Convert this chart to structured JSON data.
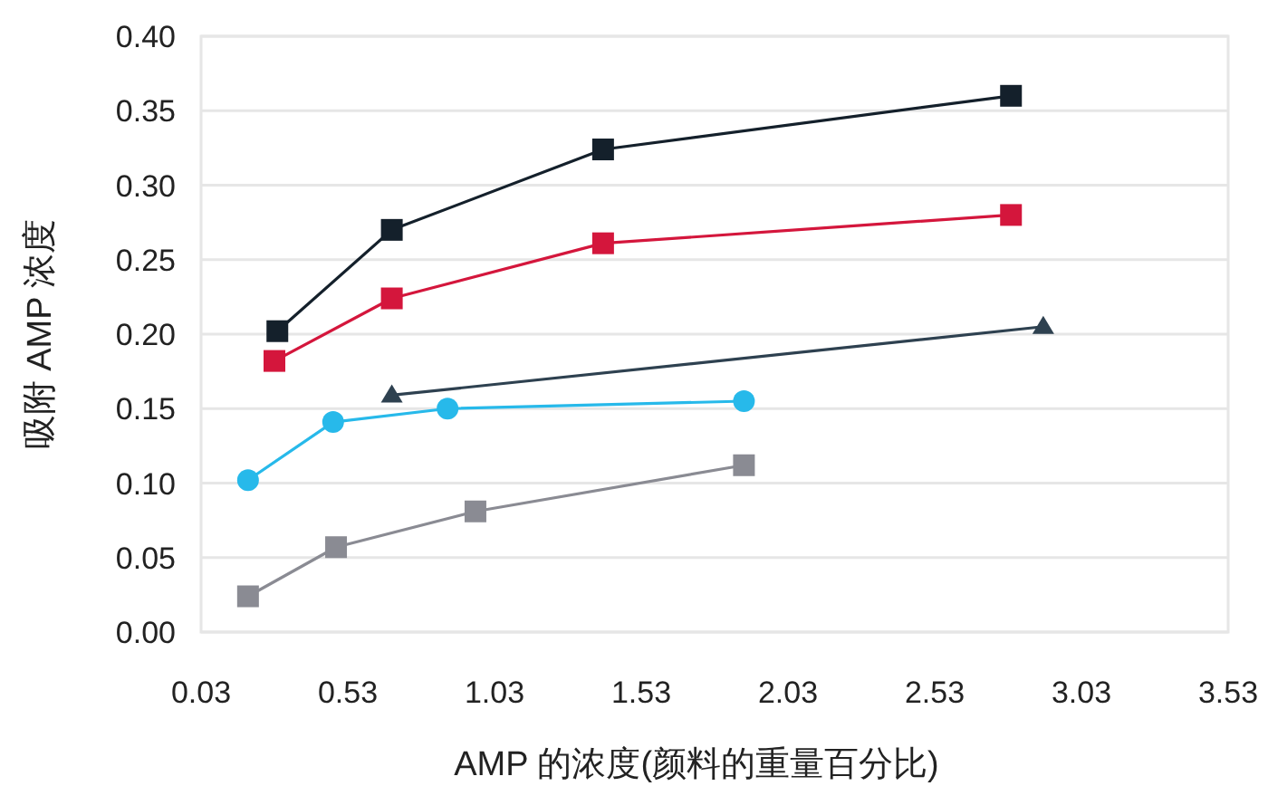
{
  "chart_data": {
    "type": "line",
    "xlabel": "AMP 的浓度(颜料的重量百分比)",
    "ylabel": "吸附 AMP 浓度",
    "xlim": [
      0.03,
      3.53
    ],
    "xticks": [
      0.03,
      0.53,
      1.03,
      1.53,
      2.03,
      2.53,
      3.03,
      3.53
    ],
    "ylim": [
      0,
      0.4
    ],
    "yticks": [
      {
        "value": 0,
        "label": "0.00"
      },
      0.05,
      {
        "value": 0.1,
        "label": "0.10"
      },
      0.15,
      {
        "value": 0.2,
        "label": "0.20"
      },
      0.25,
      {
        "value": 0.3,
        "label": "0.30"
      },
      0.35,
      {
        "value": 0.4,
        "label": "0.40"
      }
    ],
    "grid": "y",
    "series": [
      {
        "color": "#14202b",
        "marker": "square",
        "x": [
          0.29,
          0.68,
          1.4,
          2.79
        ],
        "values": [
          0.202,
          0.27,
          0.324,
          0.36
        ]
      },
      {
        "color": "#d4163c",
        "marker": "square",
        "x": [
          0.28,
          0.68,
          1.4,
          2.79
        ],
        "values": [
          0.182,
          0.224,
          0.261,
          0.28
        ]
      },
      {
        "color": "#2e4150",
        "marker": "triangle",
        "x": [
          0.68,
          2.9
        ],
        "values": [
          0.159,
          0.205
        ]
      },
      {
        "color": "#27b9ea",
        "marker": "circle",
        "x": [
          0.19,
          0.48,
          0.87,
          1.88
        ],
        "values": [
          0.102,
          0.141,
          0.15,
          0.155
        ]
      },
      {
        "color": "#8a8b93",
        "marker": "square",
        "x": [
          0.19,
          0.49,
          0.965,
          1.88
        ],
        "values": [
          0.024,
          0.057,
          0.081,
          0.112
        ]
      }
    ]
  }
}
